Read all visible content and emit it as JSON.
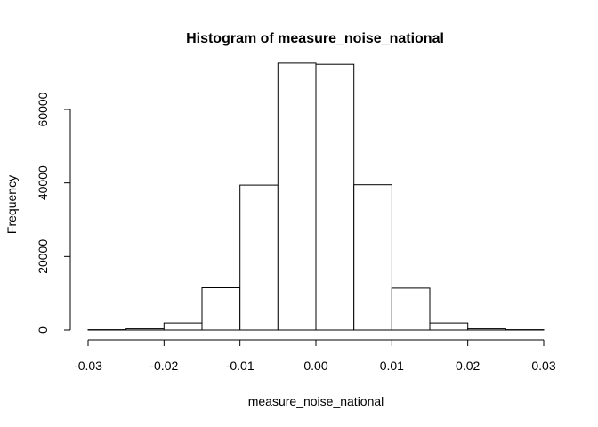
{
  "chart_data": {
    "type": "bar",
    "title": "Histogram of measure_noise_national",
    "xlabel": "measure_noise_national",
    "ylabel": "Frequency",
    "bin_edges": [
      -0.03,
      -0.025,
      -0.02,
      -0.015,
      -0.01,
      -0.005,
      0.0,
      0.005,
      0.01,
      0.015,
      0.02,
      0.025,
      0.03
    ],
    "values": [
      100,
      350,
      1900,
      11500,
      39400,
      72600,
      72300,
      39500,
      11400,
      1900,
      350,
      100
    ],
    "xlim": [
      -0.03,
      0.03
    ],
    "ylim": [
      0,
      75000
    ],
    "x_ticks": [
      -0.03,
      -0.02,
      -0.01,
      0.0,
      0.01,
      0.02,
      0.03
    ],
    "x_tick_labels": [
      "-0.03",
      "-0.02",
      "-0.01",
      "0.00",
      "0.01",
      "0.02",
      "0.03"
    ],
    "y_ticks": [
      0,
      20000,
      40000,
      60000
    ],
    "y_tick_labels": [
      "0",
      "20000",
      "40000",
      "60000"
    ],
    "grid": false,
    "bar_fill": "#ffffff",
    "bar_stroke": "#000000"
  }
}
